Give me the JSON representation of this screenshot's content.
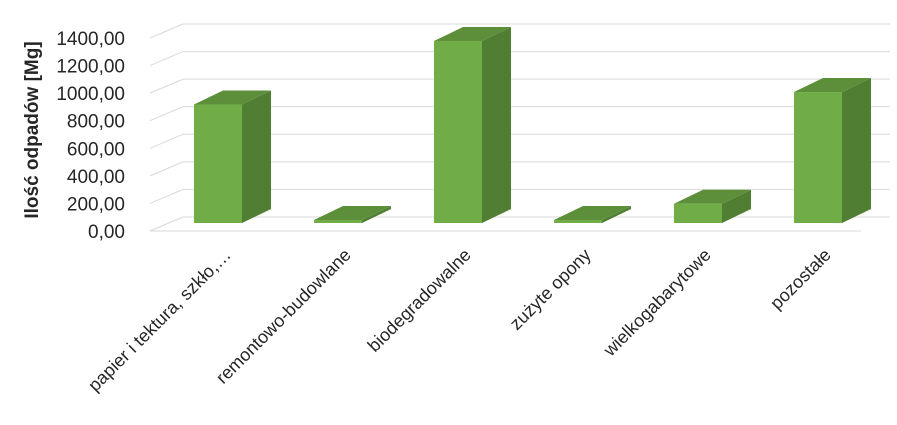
{
  "chart_data": {
    "type": "bar",
    "categories": [
      "papier i tektura, szkło,…",
      "remontowo-budowlane",
      "biodegradowalne",
      "zużyte opony",
      "wielkogabarytowe",
      "pozostałe"
    ],
    "values": [
      860,
      3,
      1320,
      10,
      140,
      950
    ],
    "title": "",
    "xlabel": "",
    "ylabel": "Ilość odpadów [Mg]",
    "ylim": [
      0,
      1400
    ],
    "yticks": [
      "0,00",
      "200,00",
      "400,00",
      "600,00",
      "800,00",
      "1000,00",
      "1200,00",
      "1400,00"
    ],
    "grid": true,
    "legend": "none",
    "style": "3d-column",
    "colors": {
      "front": "#70ad47",
      "side": "#507e32",
      "top": "#5d8f3a",
      "grid": "#d9d9d9"
    }
  }
}
